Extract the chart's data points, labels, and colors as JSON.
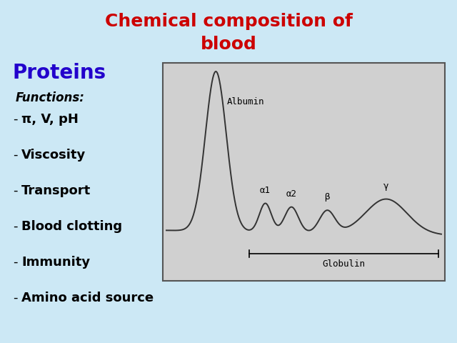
{
  "title_line1": "Chemical composition of",
  "title_line2": "blood",
  "title_color": "#cc0000",
  "background_color": "#cce8f5",
  "proteins_label": "Proteins",
  "proteins_color": "#2200cc",
  "functions_label": "Functions:",
  "bullet_items": [
    "π, V, pH",
    "Viscosity",
    "Transport",
    "Blood clotting",
    "Immunity",
    "Amino acid source"
  ],
  "chart_bg": "#d0d0d0",
  "chart_border": "#555555",
  "curve_color": "#333333",
  "albumin_label": "Albumin",
  "alpha1_label": "α1",
  "alpha2_label": "α2",
  "beta_label": "β",
  "gamma_label": "γ",
  "globulin_label": "Globulin"
}
